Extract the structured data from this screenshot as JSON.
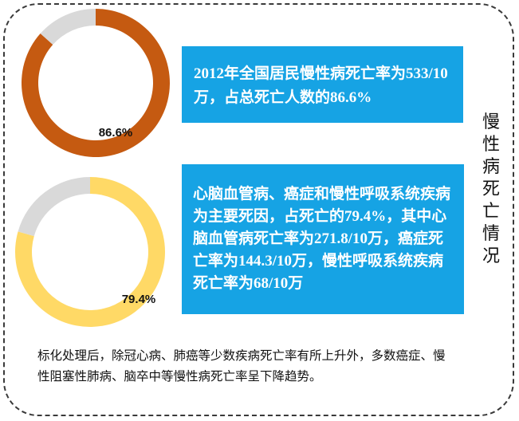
{
  "colors": {
    "donut1_main": "#c55a11",
    "donut2_main": "#ffd966",
    "donut_rest": "#d9d9d9",
    "box_bg": "#16a3e4"
  },
  "chart_data": [
    {
      "type": "pie",
      "variant": "donut",
      "labels": [
        "",
        ""
      ],
      "values": [
        86.6,
        13.4
      ],
      "data_label": "86.6%",
      "title": ""
    },
    {
      "type": "pie",
      "variant": "donut",
      "labels": [
        "",
        ""
      ],
      "values": [
        79.4,
        20.6
      ],
      "data_label": "79.4%",
      "title": ""
    }
  ],
  "box1_text": "2012年全国居民慢性病死亡率为533/10万，占总死亡人数的86.6%",
  "box2_text": "心脑血管病、癌症和慢性呼吸系统疾病为主要死因，占死亡的79.4%，其中心脑血管病死亡率为271.8/10万，癌症死亡率为144.3/10万，慢性呼吸系统疾病死亡率为68/10万",
  "side_title": "慢性病死亡情况",
  "summary_text": "标化处理后，除冠心病、肺癌等少数疾病死亡率有所上升外，多数癌症、慢性阻塞性肺病、脑卒中等慢性病死亡率呈下降趋势。"
}
